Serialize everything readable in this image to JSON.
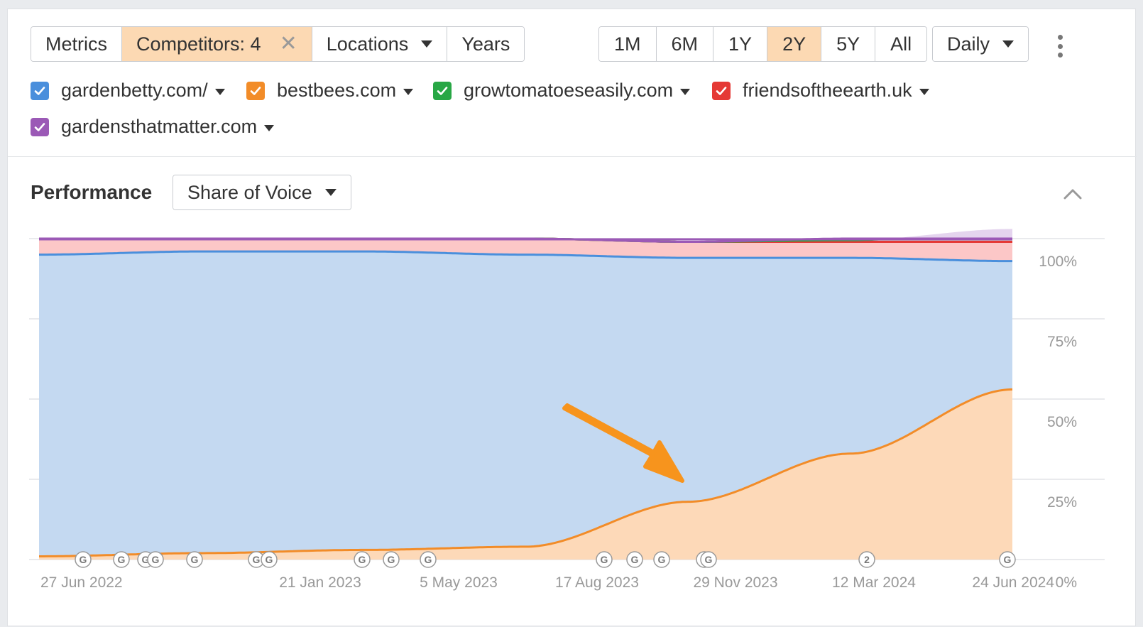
{
  "toolbar": {
    "metrics_label": "Metrics",
    "competitors_label": "Competitors: 4",
    "locations_label": "Locations",
    "years_label": "Years",
    "ranges": [
      "1M",
      "6M",
      "1Y",
      "2Y",
      "5Y",
      "All"
    ],
    "active_range": "2Y",
    "granularity_label": "Daily"
  },
  "legend": [
    {
      "label": "gardenbetty.com/",
      "color": "#4a8fdc"
    },
    {
      "label": "bestbees.com",
      "color": "#f28c28"
    },
    {
      "label": "growtomatoeseasily.com",
      "color": "#28a745"
    },
    {
      "label": "friendsoftheearth.uk",
      "color": "#e53935"
    },
    {
      "label": "gardensthatmatter.com",
      "color": "#9b59b6"
    }
  ],
  "performance": {
    "title": "Performance",
    "metric_label": "Share of Voice"
  },
  "chart_data": {
    "type": "area",
    "stacked": true,
    "x": [
      "27 Jun 2022",
      "21 Jan 2023",
      "5 May 2023",
      "17 Aug 2023",
      "29 Nov 2023",
      "12 Mar 2024",
      "24 Jun 2024"
    ],
    "y_ticks": [
      "0%",
      "25%",
      "50%",
      "75%",
      "100%"
    ],
    "ylim": [
      0,
      100
    ],
    "series": [
      {
        "name": "bestbees.com",
        "color": "#f28c28",
        "fill": "#fdd9b8",
        "values": [
          1,
          2,
          3,
          4,
          18,
          33,
          53
        ]
      },
      {
        "name": "gardenbetty.com/",
        "color": "#4a8fdc",
        "fill": "#c4d9f1",
        "values": [
          94,
          94,
          93,
          91,
          76,
          61,
          40
        ]
      },
      {
        "name": "friendsoftheearth.uk",
        "color": "#e53935",
        "fill": "#fcc7c7",
        "values": [
          5,
          4,
          4,
          5,
          5,
          5,
          6
        ]
      },
      {
        "name": "growtomatoeseasily.com",
        "color": "#28a745",
        "fill": "#cdebd5",
        "values": [
          0,
          0,
          0,
          0,
          0,
          0.5,
          4
        ]
      },
      {
        "name": "gardensthatmatter.com",
        "color": "#9b59b6",
        "fill": "#e4d4ee",
        "values": [
          0,
          0,
          0,
          0,
          0,
          0.5,
          2
        ]
      }
    ],
    "annotation_markers": [
      "G",
      "G",
      "G",
      "G",
      "G",
      "G",
      "G",
      "G",
      "G",
      "G",
      "G",
      "G",
      "G",
      "G",
      "G",
      "2",
      "G"
    ],
    "grid": true
  },
  "arrow_color": "#f7941d"
}
